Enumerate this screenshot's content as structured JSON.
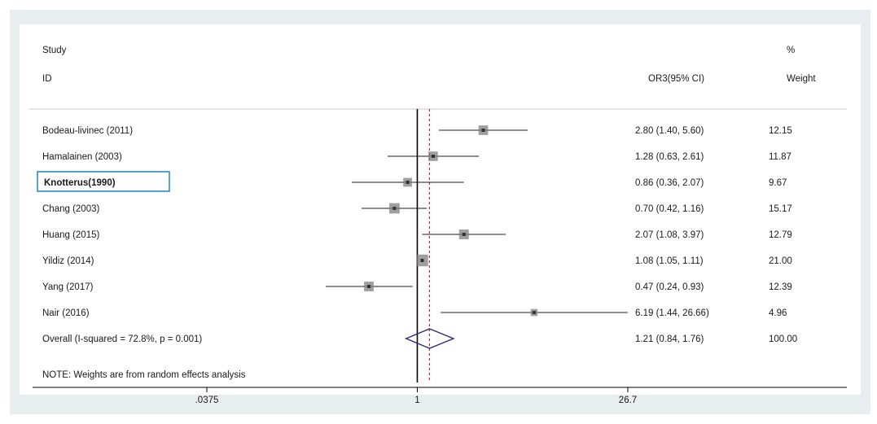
{
  "chart_data": {
    "type": "forest",
    "header": {
      "study_label_line1": "Study",
      "study_label_line2": "ID",
      "estimate_label": "OR3(95% CI)",
      "weight_label_line1": "%",
      "weight_label_line2": "Weight"
    },
    "studies": [
      {
        "label": "Bodeau-livinec (2011)",
        "or": 2.8,
        "lower": 1.4,
        "upper": 5.6,
        "ci_text": "2.80 (1.40, 5.60)",
        "weight_text": "12.15",
        "boxed": false
      },
      {
        "label": "Hamalainen (2003)",
        "or": 1.28,
        "lower": 0.63,
        "upper": 2.61,
        "ci_text": "1.28 (0.63, 2.61)",
        "weight_text": "11.87",
        "boxed": false
      },
      {
        "label": "Knotterus(1990)",
        "or": 0.86,
        "lower": 0.36,
        "upper": 2.07,
        "ci_text": "0.86 (0.36, 2.07)",
        "weight_text": "9.67",
        "boxed": true
      },
      {
        "label": "Chang (2003)",
        "or": 0.7,
        "lower": 0.42,
        "upper": 1.16,
        "ci_text": "0.70 (0.42, 1.16)",
        "weight_text": "15.17",
        "boxed": false
      },
      {
        "label": "Huang (2015)",
        "or": 2.07,
        "lower": 1.08,
        "upper": 3.97,
        "ci_text": "2.07 (1.08, 3.97)",
        "weight_text": "12.79",
        "boxed": false
      },
      {
        "label": "Yildiz (2014)",
        "or": 1.08,
        "lower": 1.05,
        "upper": 1.11,
        "ci_text": "1.08 (1.05, 1.11)",
        "weight_text": "21.00",
        "boxed": false
      },
      {
        "label": "Yang (2017)",
        "or": 0.47,
        "lower": 0.24,
        "upper": 0.93,
        "ci_text": "0.47 (0.24, 0.93)",
        "weight_text": "12.39",
        "boxed": false
      },
      {
        "label": "Nair (2016)",
        "or": 6.19,
        "lower": 1.44,
        "upper": 26.66,
        "ci_text": "6.19 (1.44, 26.66)",
        "weight_text": "4.96",
        "boxed": false
      }
    ],
    "overall": {
      "label": "Overall  (I-squared = 72.8%, p = 0.001)",
      "or": 1.21,
      "lower": 0.84,
      "upper": 1.76,
      "ci_text": "1.21 (0.84, 1.76)",
      "weight_text": "100.00"
    },
    "note": "NOTE: Weights are from random effects analysis",
    "x_scale": "log",
    "xlim": [
      0.0375,
      26.7
    ],
    "x_ticks": [
      {
        "value": 0.0375,
        "label": ".0375"
      },
      {
        "value": 1,
        "label": "1"
      },
      {
        "value": 26.7,
        "label": "26.7"
      }
    ],
    "reference_line": 1,
    "pooled_line": 1.21,
    "colors": {
      "point": "#7f7f7f",
      "ci_line": "#1a1a1a",
      "diamond": "#2c2c7a",
      "pooled_line": "#c0262b",
      "frame": "#e8edf0"
    }
  }
}
